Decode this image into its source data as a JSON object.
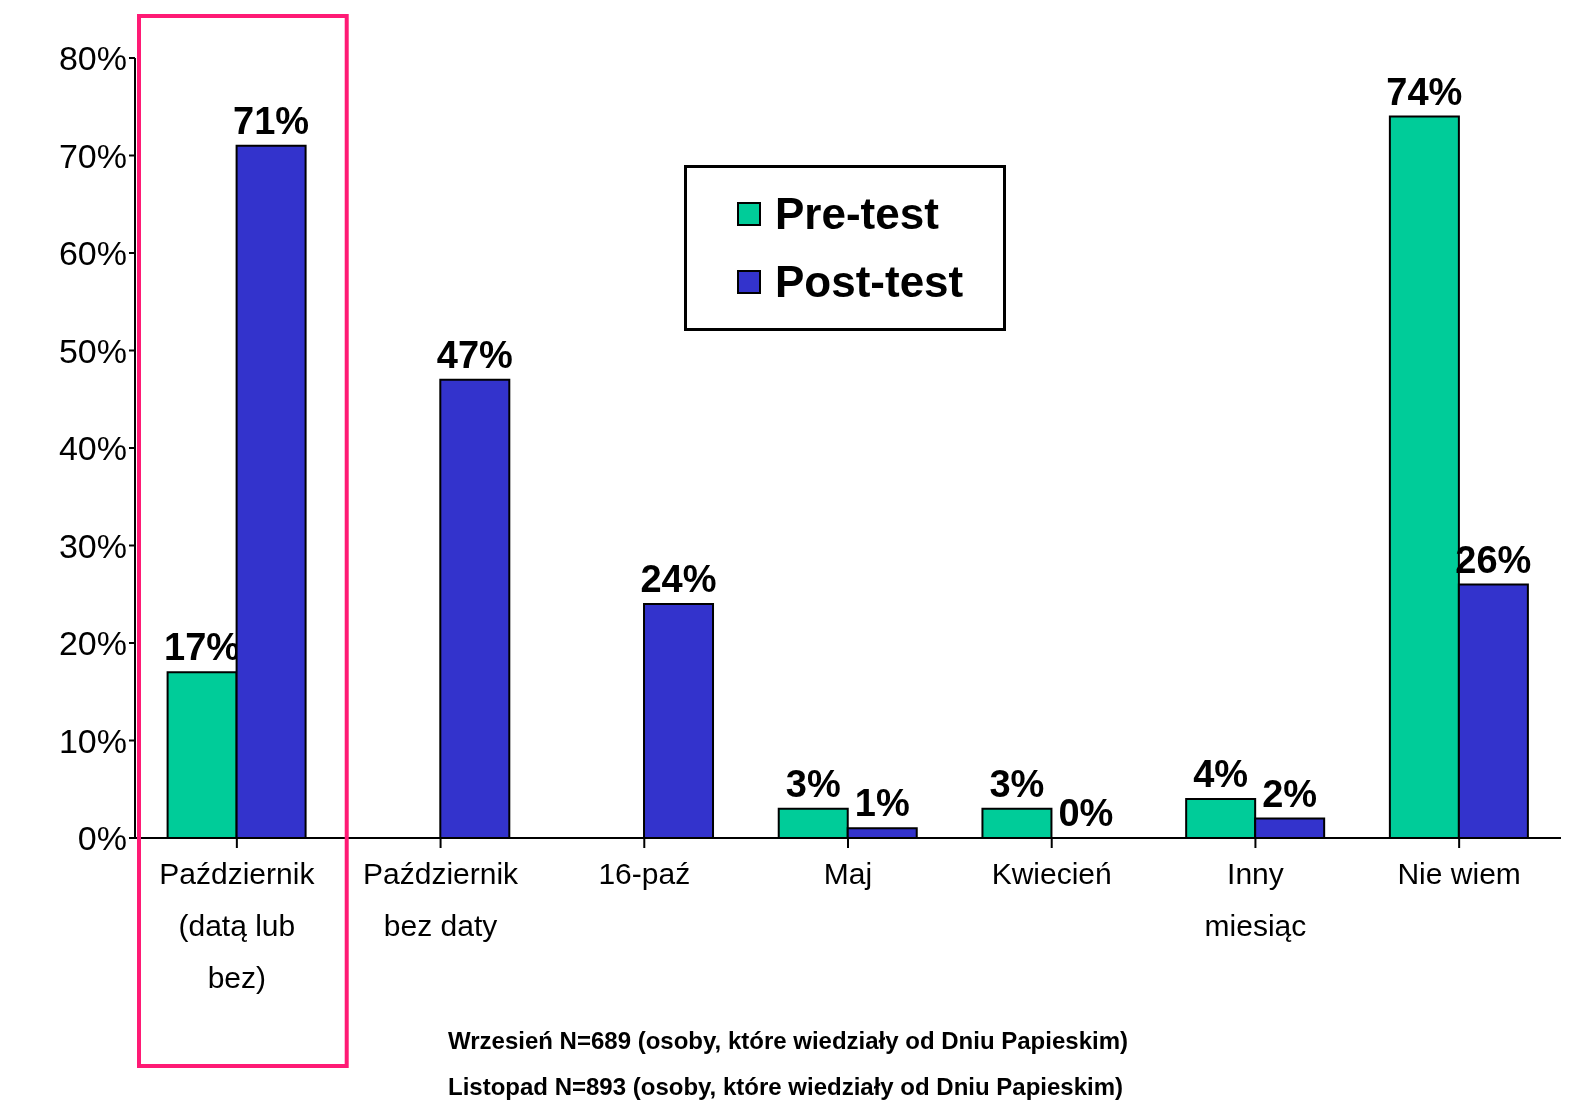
{
  "chart_data": {
    "type": "bar",
    "categories": [
      "Październik (datą lub bez)",
      "Październik bez daty",
      "16-paź",
      "Maj",
      "Kwiecień",
      "Inny miesiąc",
      "Nie wiem"
    ],
    "series": [
      {
        "name": "Pre-test",
        "color": "#00cc99",
        "values": [
          17,
          null,
          null,
          3,
          3,
          4,
          74
        ],
        "value_labels": [
          "17%",
          null,
          null,
          "3%",
          "3%",
          "4%",
          "74%"
        ]
      },
      {
        "name": "Post-test",
        "color": "#3333cc",
        "values": [
          71,
          47,
          24,
          1,
          0,
          2,
          26
        ],
        "value_labels": [
          "71%",
          "47%",
          "24%",
          "1%",
          "0%",
          "2%",
          "26%"
        ]
      }
    ],
    "ylim": [
      0,
      80
    ],
    "yticks": [
      {
        "value": 0,
        "label": "0%"
      },
      {
        "value": 10,
        "label": "10%"
      },
      {
        "value": 20,
        "label": "20%"
      },
      {
        "value": 30,
        "label": "30%"
      },
      {
        "value": 40,
        "label": "40%"
      },
      {
        "value": 50,
        "label": "50%"
      },
      {
        "value": 60,
        "label": "60%"
      },
      {
        "value": 70,
        "label": "70%"
      },
      {
        "value": 80,
        "label": "80%"
      }
    ],
    "bands": [
      {
        "axis": "x",
        "from": "Październik (datą lub bez)",
        "to": "Październik (datą lub bez)",
        "color": "#ff1a75"
      }
    ],
    "grid": false,
    "legend": "top",
    "annotations": [
      "Wrzesień N=689 (osoby, które wiedziały od Dniu Papieskim)",
      "Listopad N=893 (osoby, które wiedziały od Dniu Papieskim)"
    ]
  }
}
